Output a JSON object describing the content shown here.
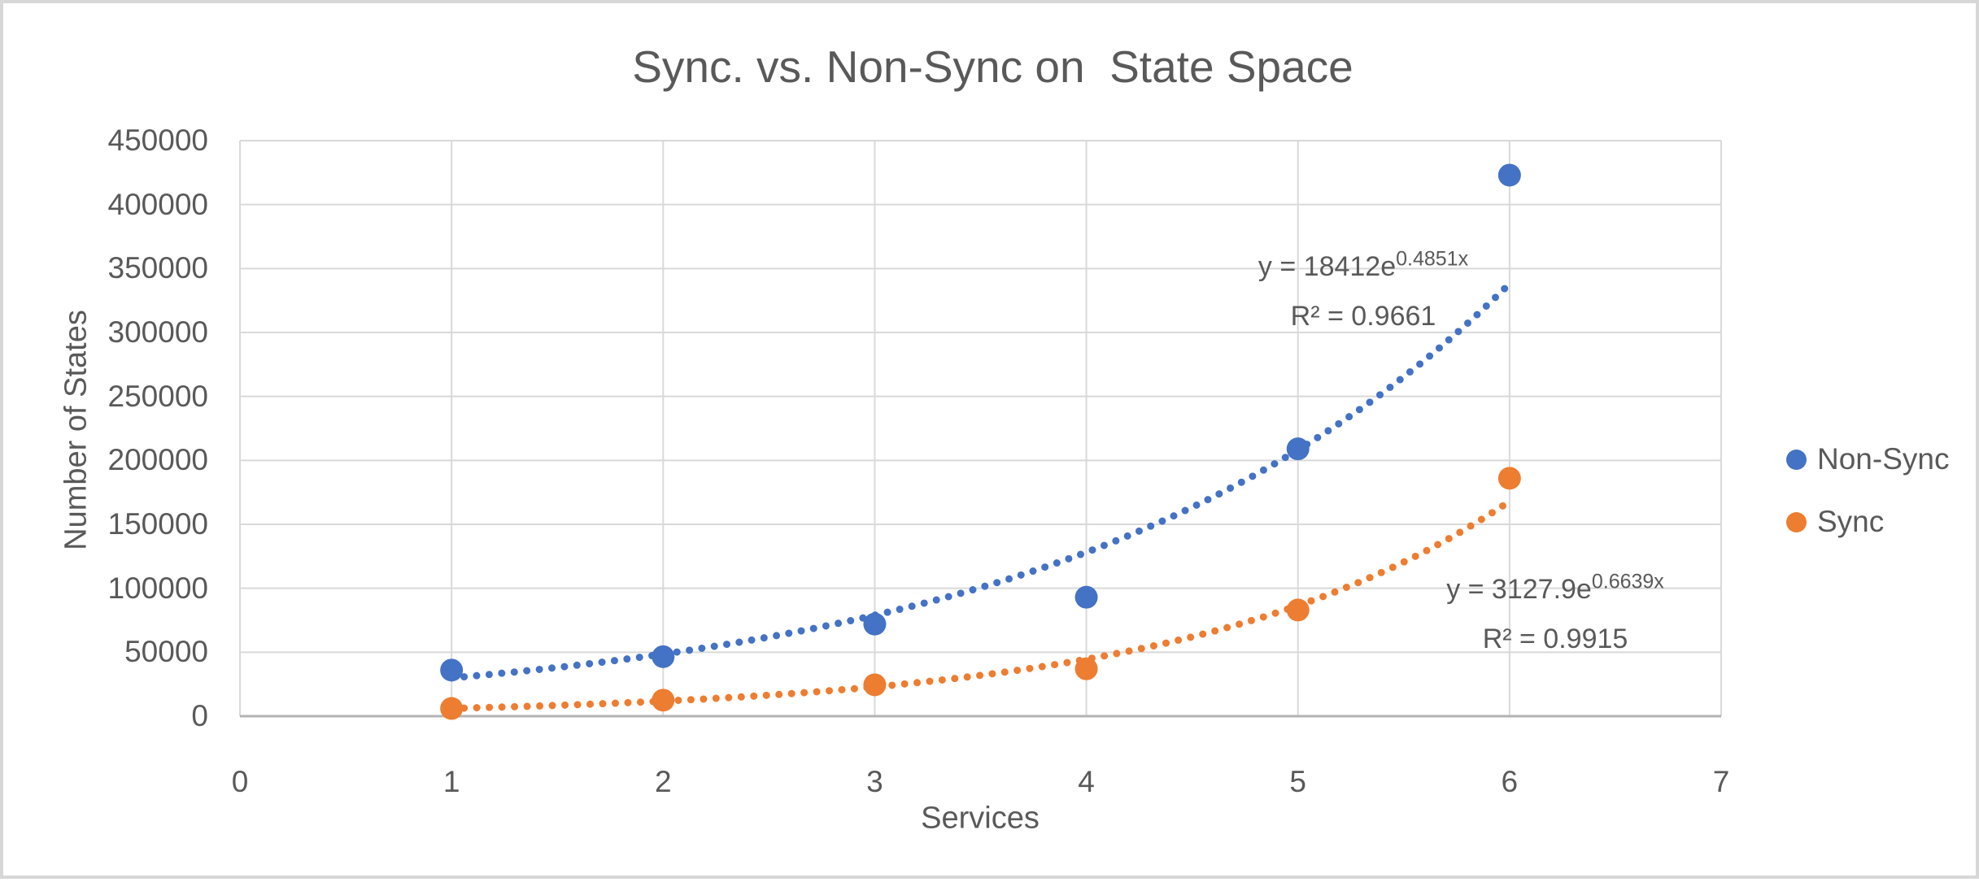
{
  "chart_data": {
    "type": "scatter",
    "title": "Sync. vs. Non-Sync on  State Space",
    "xlabel": "Services",
    "ylabel": "Number of States",
    "xlim": [
      0,
      7
    ],
    "ylim": [
      0,
      450000
    ],
    "x_ticks": [
      0,
      1,
      2,
      3,
      4,
      5,
      6,
      7
    ],
    "y_ticks": [
      0,
      50000,
      100000,
      150000,
      200000,
      250000,
      300000,
      350000,
      400000,
      450000
    ],
    "grid": true,
    "legend_position": "right",
    "x": [
      1,
      2,
      3,
      4,
      5,
      6
    ],
    "series": [
      {
        "name": "Non-Sync",
        "color": "#4472C4",
        "values": [
          36000,
          46500,
          72000,
          93000,
          209000,
          423000
        ],
        "trendline": {
          "type": "exponential",
          "a": 18412,
          "b": 0.4851,
          "label_prefix": "y = 18412e",
          "label_exponent": "0.4851x",
          "r2_label": "R² = 0.9661"
        }
      },
      {
        "name": "Sync",
        "color": "#ED7D31",
        "values": [
          6000,
          12500,
          24500,
          37000,
          83000,
          186000
        ],
        "trendline": {
          "type": "exponential",
          "a": 3127.9,
          "b": 0.6639,
          "label_prefix": "y = 3127.9e",
          "label_exponent": "0.6639x",
          "r2_label": "R² = 0.9915"
        }
      }
    ]
  },
  "colors": {
    "text": "#595959",
    "gridline": "#d9d9d9",
    "axis_line": "#b3b3b3",
    "frame_border": "#d7d7d7",
    "background": "#ffffff"
  }
}
